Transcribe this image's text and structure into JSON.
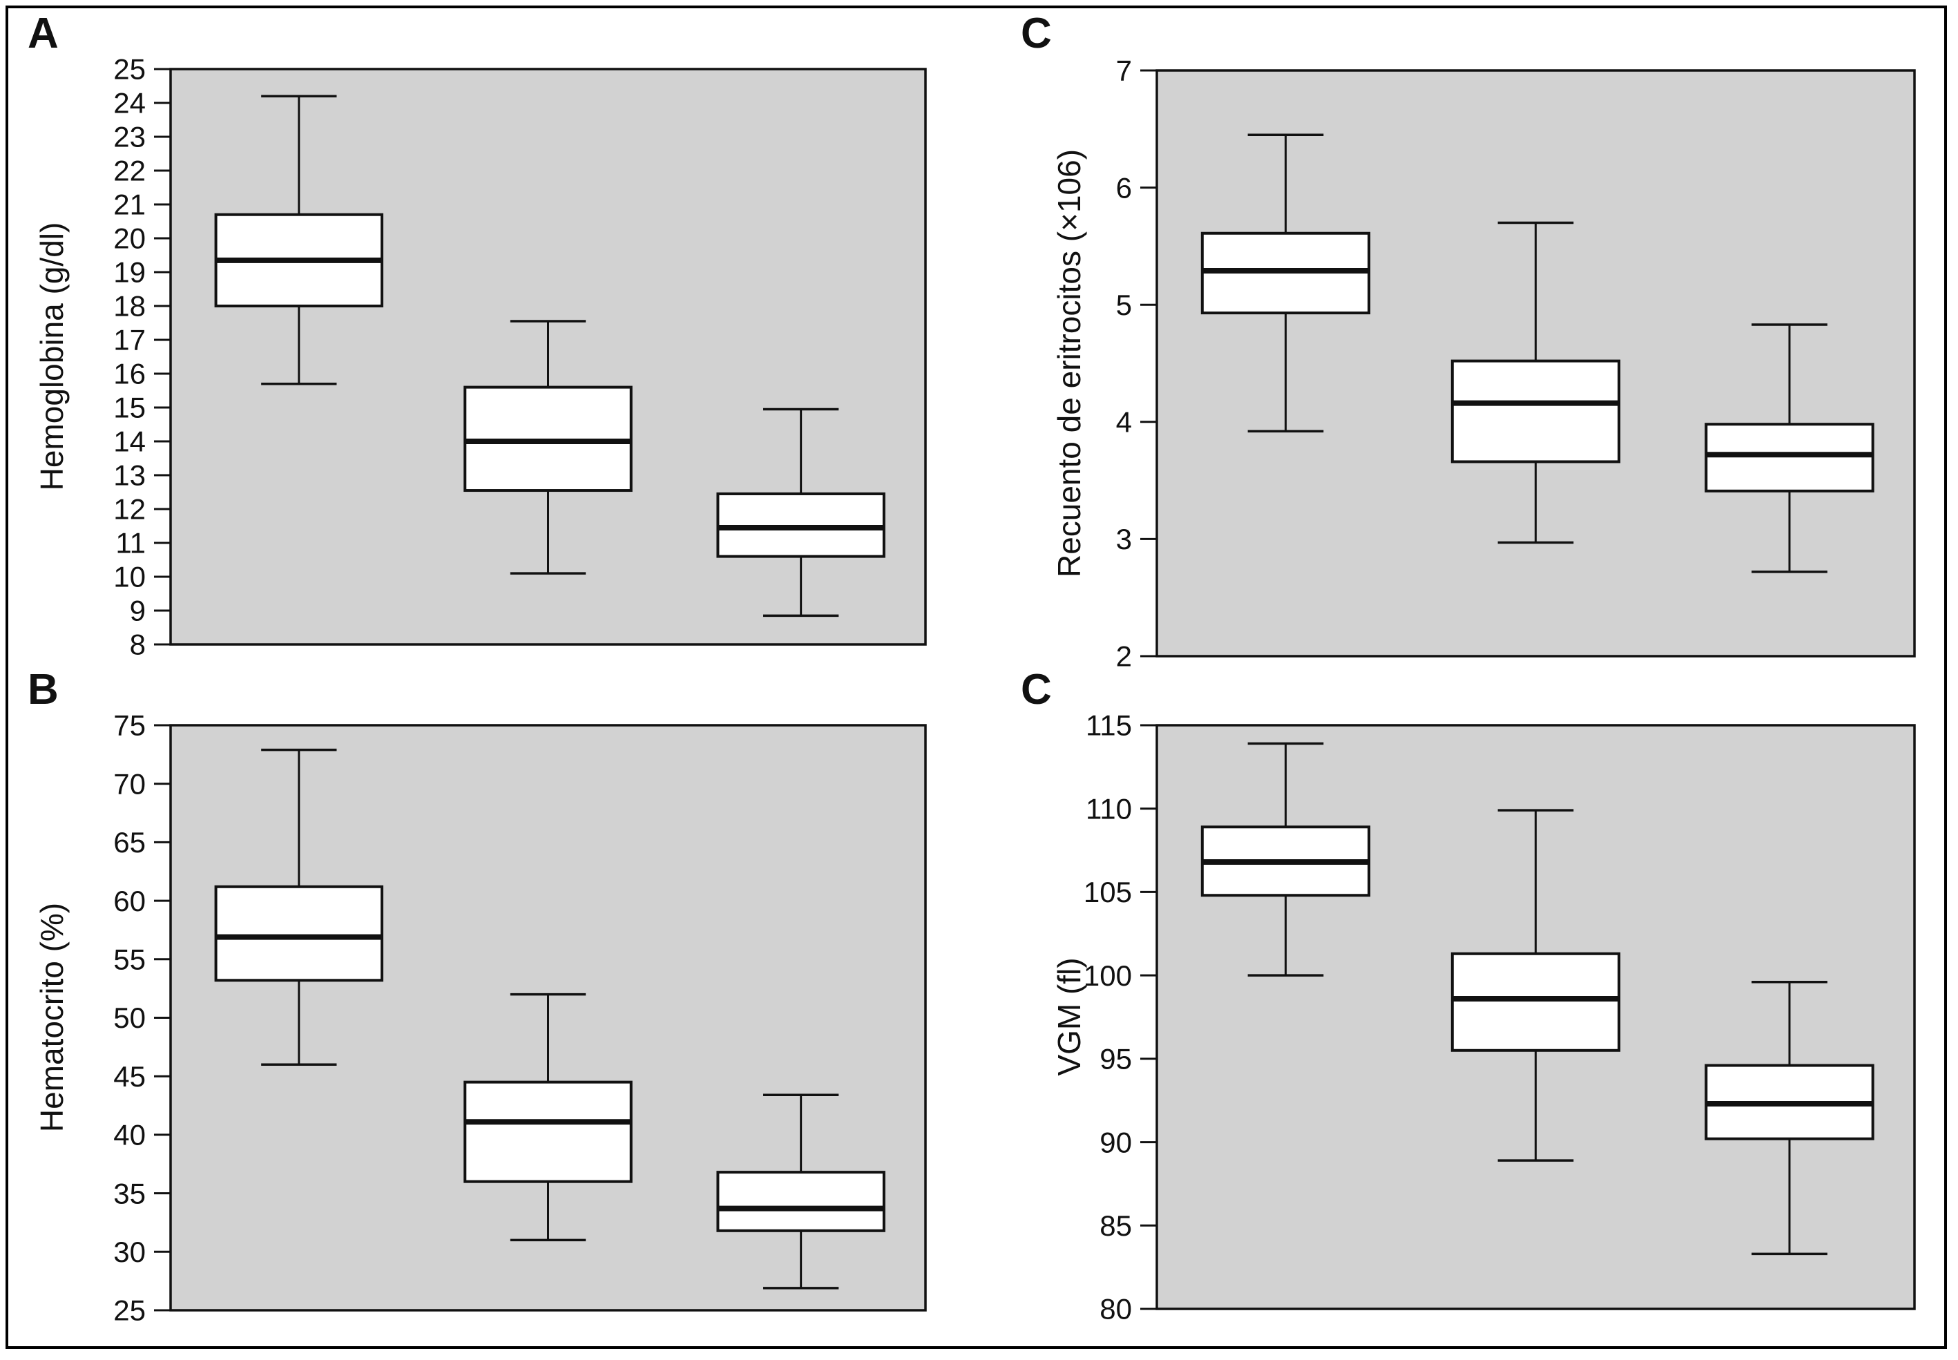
{
  "figure": {
    "plot_bg": "#d2d2d2",
    "line_color": "#111111",
    "box_fill": "#ffffff",
    "border_color": "#000000",
    "grid": false,
    "legend": "none"
  },
  "chart_data": [
    {
      "type": "box",
      "panel_label": "A",
      "ylabel": "Hemoglobina (g/dl)",
      "xlabel": "",
      "ylim": [
        8,
        25
      ],
      "yticks": [
        25,
        24,
        23,
        22,
        21,
        20,
        19,
        18,
        17,
        16,
        15,
        14,
        13,
        12,
        11,
        10,
        9,
        8
      ],
      "boxes": [
        {
          "whisker_low": 15.7,
          "q1": 18.0,
          "median": 19.35,
          "q3": 20.7,
          "whisker_high": 24.2
        },
        {
          "whisker_low": 10.1,
          "q1": 12.55,
          "median": 14.0,
          "q3": 15.6,
          "whisker_high": 17.55
        },
        {
          "whisker_low": 8.85,
          "q1": 10.6,
          "median": 11.45,
          "q3": 12.45,
          "whisker_high": 14.95
        }
      ]
    },
    {
      "type": "box",
      "panel_label": "C",
      "ylabel": "Recuento de eritrocitos (×106)",
      "xlabel": "",
      "ylim": [
        2,
        7
      ],
      "yticks": [
        7,
        6,
        5,
        4,
        3,
        2
      ],
      "boxes": [
        {
          "whisker_low": 3.92,
          "q1": 4.93,
          "median": 5.29,
          "q3": 5.61,
          "whisker_high": 6.45
        },
        {
          "whisker_low": 2.97,
          "q1": 3.66,
          "median": 4.16,
          "q3": 4.52,
          "whisker_high": 5.7
        },
        {
          "whisker_low": 2.72,
          "q1": 3.41,
          "median": 3.72,
          "q3": 3.98,
          "whisker_high": 4.83
        }
      ]
    },
    {
      "type": "box",
      "panel_label": "B",
      "ylabel": "Hematocrito (%)",
      "xlabel": "",
      "ylim": [
        25,
        75
      ],
      "yticks": [
        75,
        70,
        65,
        60,
        55,
        50,
        45,
        40,
        35,
        30,
        25
      ],
      "boxes": [
        {
          "whisker_low": 46.0,
          "q1": 53.2,
          "median": 56.9,
          "q3": 61.2,
          "whisker_high": 72.9
        },
        {
          "whisker_low": 31.0,
          "q1": 36.0,
          "median": 41.1,
          "q3": 44.5,
          "whisker_high": 52.0
        },
        {
          "whisker_low": 26.9,
          "q1": 31.8,
          "median": 33.7,
          "q3": 36.8,
          "whisker_high": 43.4
        }
      ]
    },
    {
      "type": "box",
      "panel_label": "C",
      "ylabel": "VGM (fl)",
      "xlabel": "",
      "ylim": [
        80,
        115
      ],
      "yticks": [
        115,
        110,
        105,
        100,
        95,
        90,
        85,
        80
      ],
      "boxes": [
        {
          "whisker_low": 100.0,
          "q1": 104.8,
          "median": 106.8,
          "q3": 108.9,
          "whisker_high": 113.9
        },
        {
          "whisker_low": 88.9,
          "q1": 95.5,
          "median": 98.6,
          "q3": 101.3,
          "whisker_high": 109.9
        },
        {
          "whisker_low": 83.3,
          "q1": 90.2,
          "median": 92.3,
          "q3": 94.6,
          "whisker_high": 99.6
        }
      ]
    }
  ]
}
